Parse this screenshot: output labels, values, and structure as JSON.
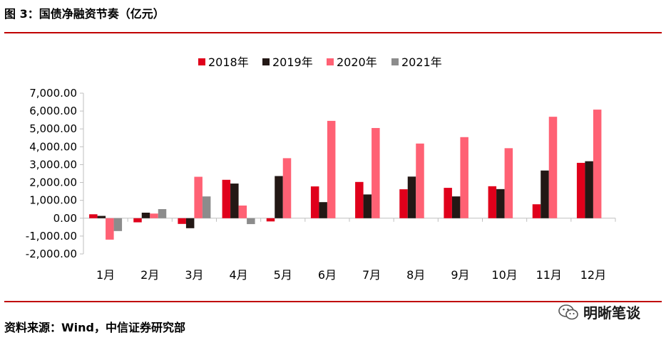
{
  "header": {
    "title": "图 3：国债净融资节奏（亿元）"
  },
  "footer": {
    "source": "资料来源：Wind，中信证券研究部"
  },
  "watermark": {
    "text": "明晰笔谈",
    "icon": "wechat-icon"
  },
  "colors": {
    "rule": "#c00000"
  },
  "chart_data": {
    "type": "bar",
    "title": "",
    "xlabel": "",
    "ylabel": "",
    "categories": [
      "1月",
      "2月",
      "3月",
      "4月",
      "5月",
      "6月",
      "7月",
      "8月",
      "9月",
      "10月",
      "11月",
      "12月"
    ],
    "ylim": [
      -2000,
      7000
    ],
    "yticks": [
      7000,
      6000,
      5000,
      4000,
      3000,
      2000,
      1000,
      0,
      -1000,
      -2000
    ],
    "ytick_labels": [
      "7,000.00",
      "6,000.00",
      "5,000.00",
      "4,000.00",
      "3,000.00",
      "2,000.00",
      "1,000.00",
      "0.00",
      "-1,000.00",
      "-2,000.00"
    ],
    "legend_position": "top",
    "grid": false,
    "series": [
      {
        "name": "2018年",
        "color": "#e0001b",
        "values": [
          220,
          -230,
          -320,
          2150,
          -180,
          1780,
          2030,
          1620,
          1700,
          1790,
          780,
          3100
        ]
      },
      {
        "name": "2019年",
        "color": "#231815",
        "values": [
          130,
          310,
          -560,
          1940,
          2360,
          900,
          1330,
          2330,
          1220,
          1630,
          2670,
          3190
        ]
      },
      {
        "name": "2020年",
        "color": "#ff6174",
        "values": [
          -1200,
          260,
          2320,
          710,
          3360,
          5450,
          5050,
          4180,
          4540,
          3920,
          5680,
          6080
        ]
      },
      {
        "name": "2021年",
        "color": "#8c8c8c",
        "values": [
          -720,
          510,
          1220,
          -330,
          null,
          null,
          null,
          null,
          null,
          null,
          null,
          null
        ]
      }
    ]
  }
}
